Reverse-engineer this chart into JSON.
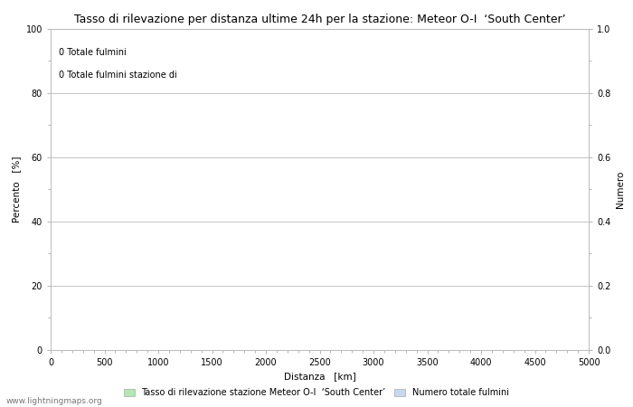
{
  "title": "Tasso di rilevazione per distanza ultime 24h per la stazione: Meteor O-I  ‘South Center’",
  "xlabel": "Distanza   [km]",
  "ylabel_left": "Percento   [%]",
  "ylabel_right": "Numero",
  "xlim": [
    0,
    5000
  ],
  "ylim_left": [
    0,
    100
  ],
  "ylim_right": [
    0,
    1.0
  ],
  "xticks": [
    0,
    500,
    1000,
    1500,
    2000,
    2500,
    3000,
    3500,
    4000,
    4500,
    5000
  ],
  "yticks_left": [
    0,
    20,
    40,
    60,
    80,
    100
  ],
  "yticks_right": [
    0.0,
    0.2,
    0.4,
    0.6,
    0.8,
    1.0
  ],
  "minor_yticks_left": [
    10,
    30,
    50,
    70,
    90
  ],
  "annotation_line1": "0 Totale fulmini",
  "annotation_line2": "0 Totale fulmini stazione di",
  "legend_label1": "Tasso di rilevazione stazione Meteor O-I  ‘South Center’",
  "legend_label2": "Numero totale fulmini",
  "legend_color1": "#b2e8b0",
  "legend_color2": "#c8d8f0",
  "background_color": "#ffffff",
  "grid_color": "#bbbbbb",
  "watermark": "www.lightningmaps.org",
  "title_fontsize": 9,
  "label_fontsize": 7.5,
  "tick_fontsize": 7,
  "annotation_fontsize": 7,
  "legend_fontsize": 7,
  "watermark_fontsize": 6.5
}
